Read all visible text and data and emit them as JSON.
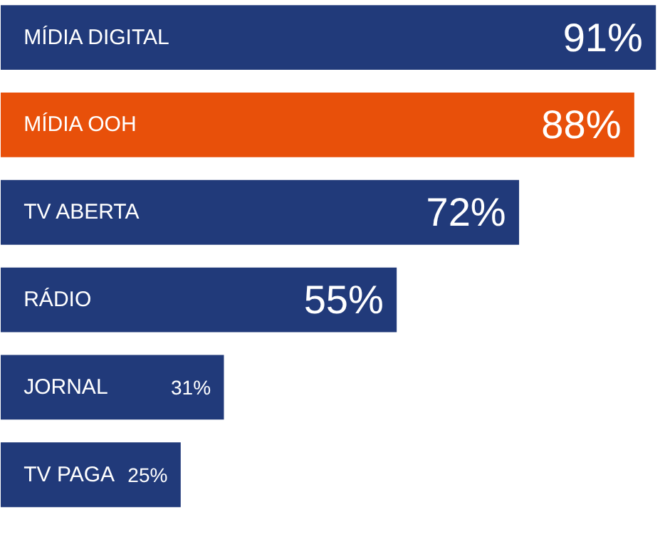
{
  "chart_data": {
    "type": "bar",
    "orientation": "horizontal",
    "categories": [
      "MÍDIA DIGITAL",
      "MÍDIA OOH",
      "TV ABERTA",
      "RÁDIO",
      "JORNAL",
      "TV PAGA"
    ],
    "values": [
      91,
      88,
      72,
      55,
      31,
      25
    ],
    "colors": [
      "#213a7a",
      "#e8500a",
      "#213a7a",
      "#213a7a",
      "#213a7a",
      "#213a7a"
    ],
    "value_labels": [
      "91%",
      "88%",
      "72%",
      "55%",
      "31%",
      "25%"
    ],
    "data_labels": true,
    "grid": false
  }
}
